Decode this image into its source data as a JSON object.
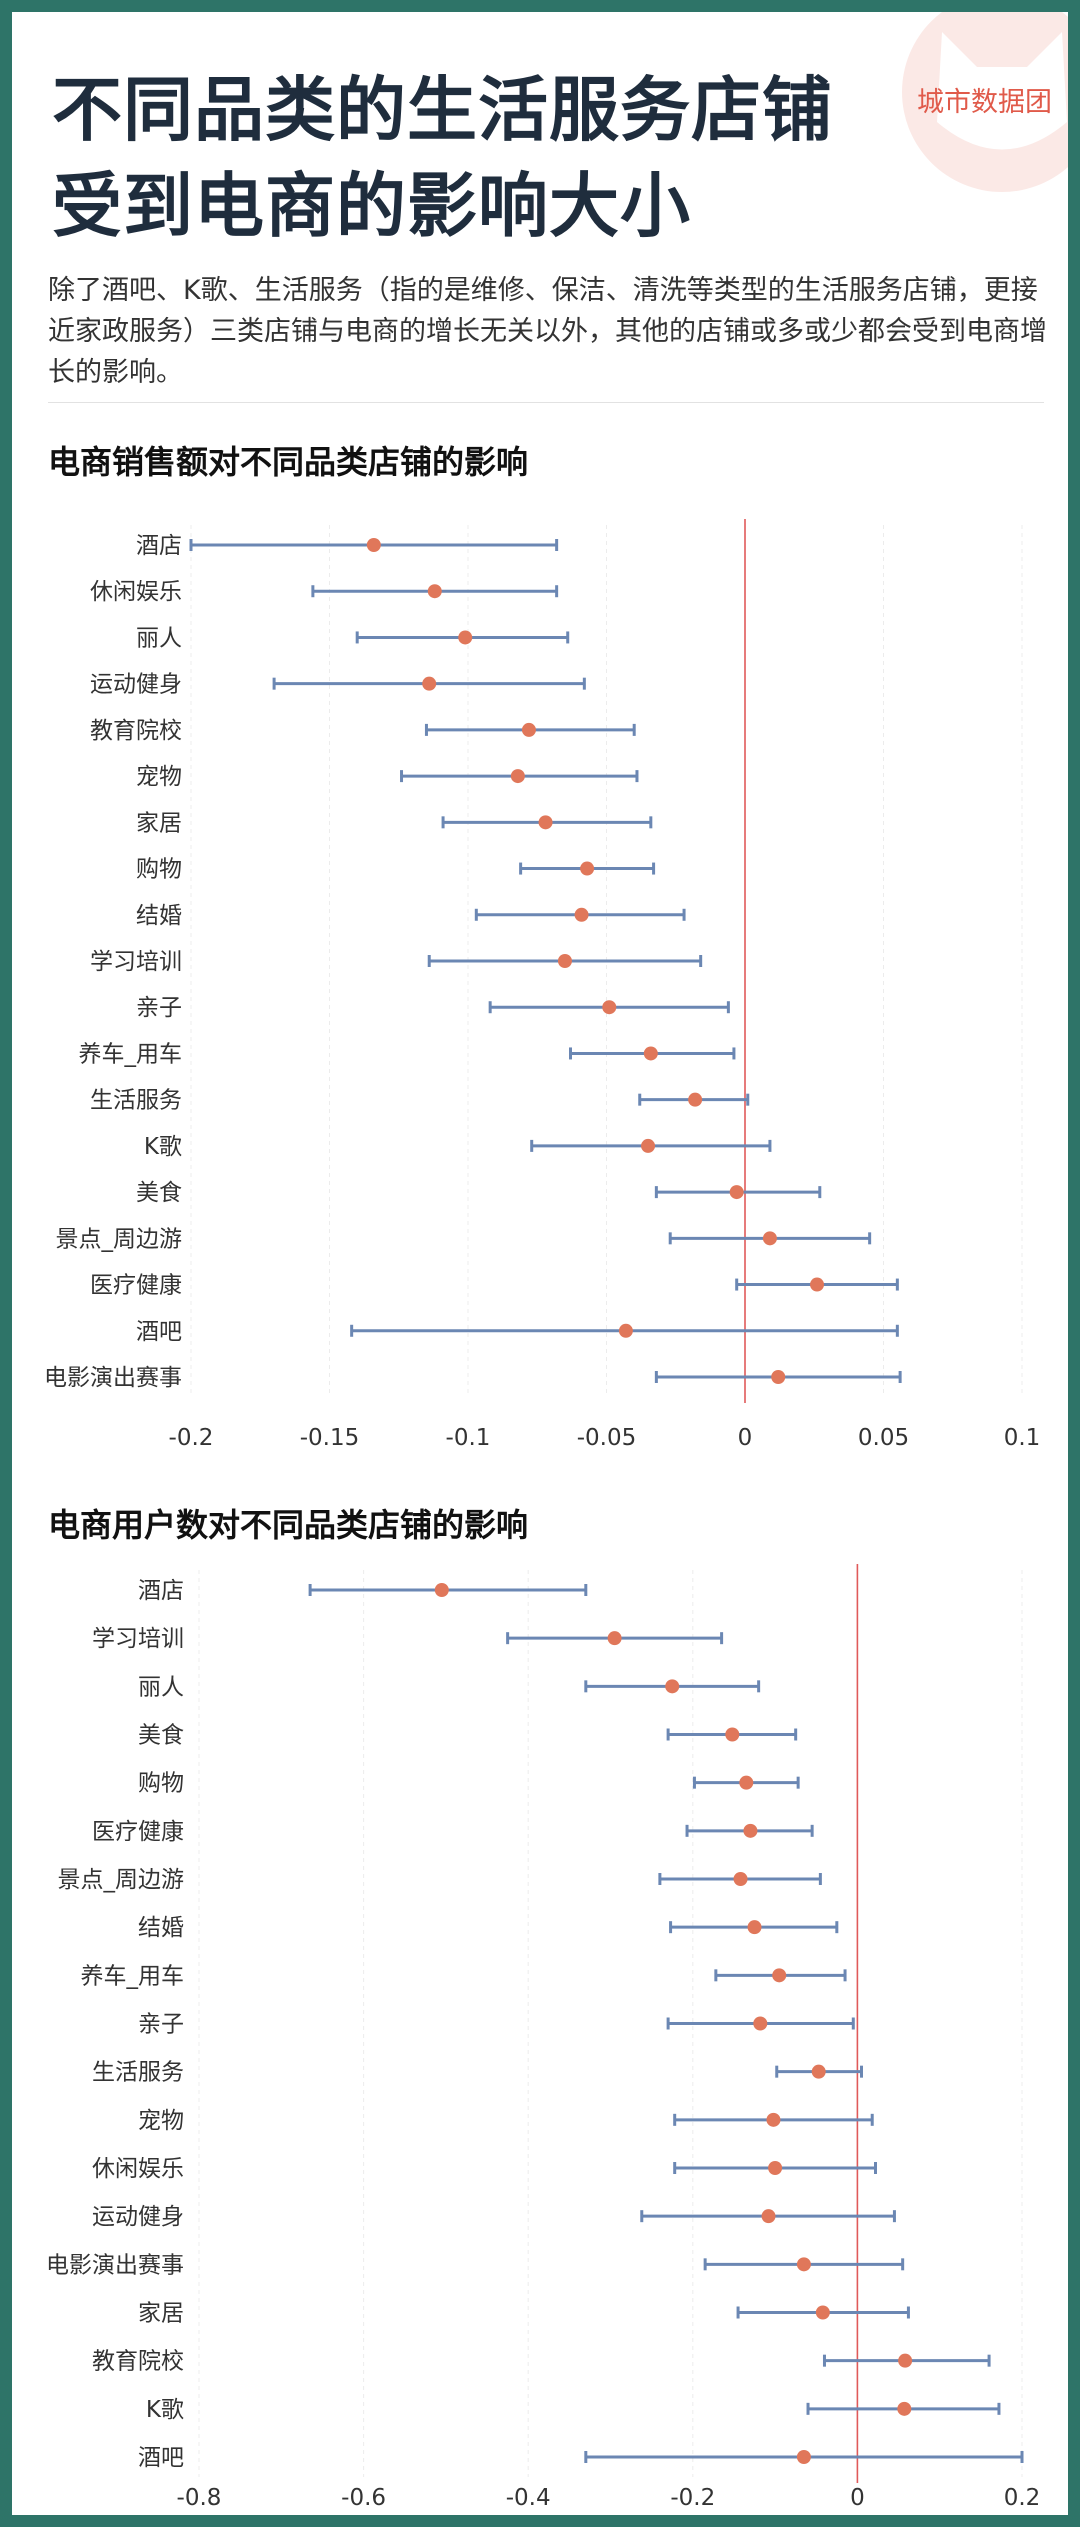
{
  "header": {
    "title_line1": "不同品类的生活服务店铺",
    "title_line2": "受到电商的影响大小",
    "description": "除了酒吧、K歌、生活服务（指的是维修、保洁、清洗等类型的生活服务店铺，更接近家政服务）三类店铺与电商的增长无关以外，其他的店铺或多或少都会受到电商增长的影响。",
    "logo_text": "城市数据团"
  },
  "colors": {
    "background": "#2e7468",
    "error_bar": "#6b87b3",
    "point": "#e0775a",
    "zero_line": "#e05a5a",
    "logo": "#e05a4a"
  },
  "chart_data": [
    {
      "type": "scatter",
      "title": "电商销售额对不同品类店铺的影响",
      "orientation": "horizontal-error-bar",
      "xlim": [
        -0.2,
        0.1
      ],
      "xticks": [
        -0.2,
        -0.15,
        -0.1,
        -0.05,
        0,
        0.05,
        0.1
      ],
      "xtick_labels": [
        "-0.2",
        "-0.15",
        "-0.1",
        "-0.05",
        "0",
        "0.05",
        "0.1"
      ],
      "reference_line_x": 0,
      "categories": [
        "酒店",
        "休闲娱乐",
        "丽人",
        "运动健身",
        "教育院校",
        "宠物",
        "家居",
        "购物",
        "结婚",
        "学习培训",
        "亲子",
        "养车_用车",
        "生活服务",
        "K歌",
        "美食",
        "景点_周边游",
        "医疗健康",
        "酒吧",
        "电影演出赛事"
      ],
      "estimate": [
        -0.134,
        -0.112,
        -0.101,
        -0.114,
        -0.078,
        -0.082,
        -0.072,
        -0.057,
        -0.059,
        -0.065,
        -0.049,
        -0.034,
        -0.018,
        -0.035,
        -0.003,
        0.009,
        0.026,
        -0.043,
        0.012
      ],
      "lower": [
        -0.2,
        -0.156,
        -0.14,
        -0.17,
        -0.115,
        -0.124,
        -0.109,
        -0.081,
        -0.097,
        -0.114,
        -0.092,
        -0.063,
        -0.038,
        -0.077,
        -0.032,
        -0.027,
        -0.003,
        -0.142,
        -0.032
      ],
      "upper": [
        -0.068,
        -0.068,
        -0.064,
        -0.058,
        -0.04,
        -0.039,
        -0.034,
        -0.033,
        -0.022,
        -0.016,
        -0.006,
        -0.004,
        0.001,
        0.009,
        0.027,
        0.045,
        0.055,
        0.055,
        0.056
      ]
    },
    {
      "type": "scatter",
      "title": "电商用户数对不同品类店铺的影响",
      "orientation": "horizontal-error-bar",
      "xlim": [
        -0.8,
        0.2
      ],
      "xticks": [
        -0.8,
        -0.6,
        -0.4,
        -0.2,
        0,
        0.2
      ],
      "xtick_labels": [
        "-0.8",
        "-0.6",
        "-0.4",
        "-0.2",
        "0",
        "0.2"
      ],
      "reference_line_x": 0,
      "categories": [
        "酒店",
        "学习培训",
        "丽人",
        "美食",
        "购物",
        "医疗健康",
        "景点_周边游",
        "结婚",
        "养车_用车",
        "亲子",
        "生活服务",
        "宠物",
        "休闲娱乐",
        "运动健身",
        "电影演出赛事",
        "家居",
        "教育院校",
        "K歌",
        "酒吧"
      ],
      "estimate": [
        -0.505,
        -0.295,
        -0.225,
        -0.152,
        -0.135,
        -0.13,
        -0.142,
        -0.125,
        -0.095,
        -0.118,
        -0.047,
        -0.102,
        -0.1,
        -0.108,
        -0.065,
        -0.042,
        0.058,
        0.057,
        -0.065
      ],
      "lower": [
        -0.665,
        -0.425,
        -0.33,
        -0.23,
        -0.198,
        -0.207,
        -0.24,
        -0.227,
        -0.172,
        -0.23,
        -0.098,
        -0.222,
        -0.222,
        -0.262,
        -0.185,
        -0.145,
        -0.04,
        -0.06,
        -0.33
      ],
      "upper": [
        -0.33,
        -0.165,
        -0.12,
        -0.075,
        -0.072,
        -0.055,
        -0.045,
        -0.025,
        -0.015,
        -0.005,
        0.005,
        0.018,
        0.022,
        0.045,
        0.055,
        0.062,
        0.16,
        0.172,
        0.2
      ]
    }
  ]
}
